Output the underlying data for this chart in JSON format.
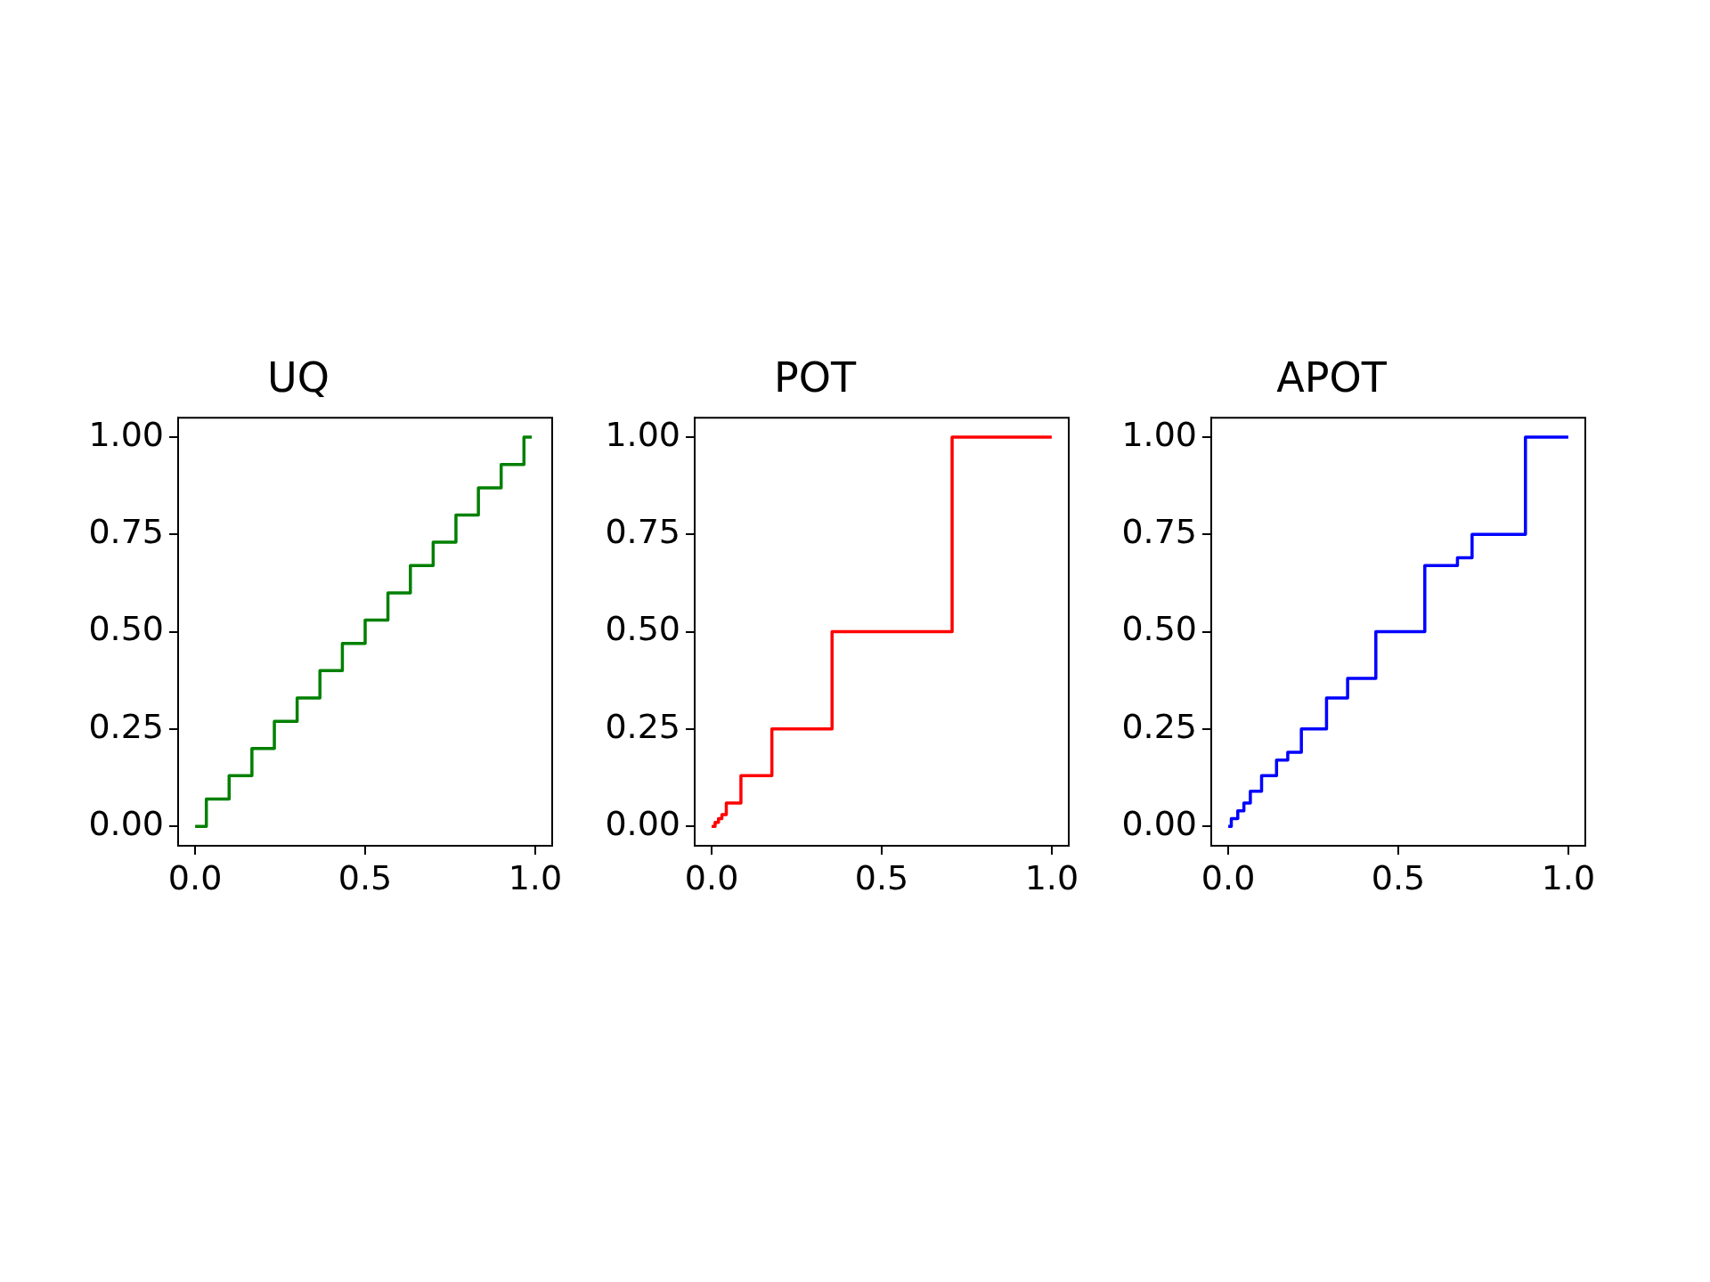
{
  "chart_data": [
    {
      "type": "step",
      "title": "UQ",
      "color": "#008000",
      "grid": false,
      "xlim": [
        -0.05,
        1.05
      ],
      "ylim": [
        -0.05,
        1.05
      ],
      "xticks": [
        {
          "value": 0,
          "label": "0.0"
        },
        {
          "value": 0.5,
          "label": "0.5"
        },
        {
          "value": 1,
          "label": "1.0"
        }
      ],
      "yticks": [
        {
          "value": 0,
          "label": "0.00"
        },
        {
          "value": 0.25,
          "label": "0.25"
        },
        {
          "value": 0.5,
          "label": "0.50"
        },
        {
          "value": 0.75,
          "label": "0.75"
        },
        {
          "value": 1,
          "label": "1.00"
        }
      ],
      "x": [
        0,
        0.033,
        0.1,
        0.167,
        0.233,
        0.3,
        0.367,
        0.433,
        0.5,
        0.567,
        0.633,
        0.7,
        0.767,
        0.833,
        0.9,
        0.967,
        0.99
      ],
      "values": [
        0,
        0.07,
        0.13,
        0.2,
        0.27,
        0.33,
        0.4,
        0.47,
        0.53,
        0.6,
        0.67,
        0.73,
        0.8,
        0.87,
        0.93,
        1,
        1
      ]
    },
    {
      "type": "step",
      "title": "POT",
      "color": "#ff0000",
      "grid": false,
      "xlim": [
        -0.05,
        1.05
      ],
      "ylim": [
        -0.05,
        1.05
      ],
      "xticks": [
        {
          "value": 0,
          "label": "0.0"
        },
        {
          "value": 0.5,
          "label": "0.5"
        },
        {
          "value": 1,
          "label": "1.0"
        }
      ],
      "yticks": [
        {
          "value": 0,
          "label": "0.00"
        },
        {
          "value": 0.25,
          "label": "0.25"
        },
        {
          "value": 0.5,
          "label": "0.50"
        },
        {
          "value": 0.75,
          "label": "0.75"
        },
        {
          "value": 1,
          "label": "1.00"
        }
      ],
      "x": [
        0,
        0.01,
        0.02,
        0.03,
        0.043,
        0.086,
        0.177,
        0.354,
        0.707,
        1
      ],
      "values": [
        0,
        0.01,
        0.02,
        0.03,
        0.06,
        0.13,
        0.25,
        0.5,
        1,
        1
      ]
    },
    {
      "type": "step",
      "title": "APOT",
      "color": "#0000ff",
      "grid": false,
      "xlim": [
        -0.05,
        1.05
      ],
      "ylim": [
        -0.05,
        1.05
      ],
      "xticks": [
        {
          "value": 0,
          "label": "0.0"
        },
        {
          "value": 0.5,
          "label": "0.5"
        },
        {
          "value": 1,
          "label": "1.0"
        }
      ],
      "yticks": [
        {
          "value": 0,
          "label": "0.00"
        },
        {
          "value": 0.25,
          "label": "0.25"
        },
        {
          "value": 0.5,
          "label": "0.50"
        },
        {
          "value": 0.75,
          "label": "0.75"
        },
        {
          "value": 1,
          "label": "1.00"
        }
      ],
      "x": [
        0,
        0.009,
        0.028,
        0.046,
        0.065,
        0.098,
        0.142,
        0.175,
        0.215,
        0.289,
        0.351,
        0.434,
        0.578,
        0.674,
        0.717,
        0.874,
        1
      ],
      "values": [
        0,
        0.02,
        0.04,
        0.06,
        0.09,
        0.13,
        0.17,
        0.19,
        0.25,
        0.33,
        0.38,
        0.5,
        0.67,
        0.69,
        0.75,
        1,
        1
      ]
    }
  ]
}
